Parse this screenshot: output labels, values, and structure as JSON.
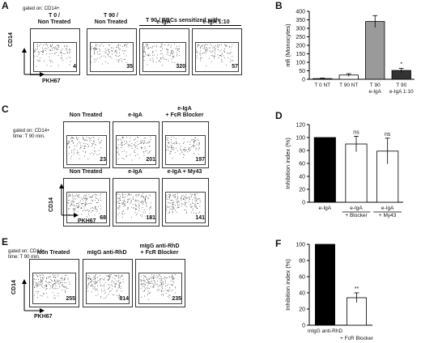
{
  "panelA": {
    "letter": "A",
    "gated": "gated on: CD14+",
    "group_header": "T 90 / RBCs sensitized with:",
    "ylabel": "CD14",
    "xlabel": "PKH67",
    "plots": [
      {
        "title": "T 0 /\nNon Treated",
        "value": "4"
      },
      {
        "title": "T 90 /\nNon Treated",
        "value": "35"
      },
      {
        "title": "e-IgA",
        "value": "320"
      },
      {
        "title": "e-IgA 1:10",
        "value": "57"
      }
    ]
  },
  "panelC": {
    "letter": "C",
    "gated": "gated on: CD14+\ntime: T 90 min.",
    "ylabel": "CD14",
    "xlabel": "PKH67",
    "row1": [
      {
        "title": "Non Treated",
        "value": "23"
      },
      {
        "title": "e-IgA",
        "value": "201"
      },
      {
        "title": "e-IgA\n+ FcR Blocker",
        "value": "197"
      }
    ],
    "row2": [
      {
        "title": "Non Treated",
        "value": "68"
      },
      {
        "title": "e-IgA",
        "value": "181"
      },
      {
        "title": "e-IgA + My43",
        "value": "141"
      }
    ]
  },
  "panelE": {
    "letter": "E",
    "gated": "gated on: CD14+\ntime: T 90 min.",
    "ylabel": "CD14",
    "xlabel": "PKH67",
    "plots": [
      {
        "title": "Non Treated",
        "value": "255"
      },
      {
        "title": "mIgG anti-RhD",
        "value": "814"
      },
      {
        "title": "mIgG anti-RhD\n+ FcR Blocker",
        "value": "235"
      }
    ]
  },
  "chart_data": [
    {
      "panel": "B",
      "type": "bar",
      "ylabel": "mfi (Monocytes)",
      "ylim": [
        0,
        400
      ],
      "yticks": [
        0,
        50,
        100,
        150,
        200,
        250,
        300,
        350,
        400
      ],
      "categories": [
        "T 0 NT",
        "T 90 NT",
        "T 90\ne-IgA",
        "T 90\ne-IgA 1:10"
      ],
      "values": [
        4,
        25,
        340,
        52
      ],
      "errors": [
        3,
        8,
        35,
        12
      ],
      "colors": [
        "#ffffff",
        "#ffffff",
        "#9a9a9a",
        "#333333"
      ],
      "annotations": [
        "",
        "",
        "",
        "*"
      ]
    },
    {
      "panel": "D",
      "type": "bar",
      "ylabel": "Inhibition index (%)",
      "ylim": [
        0,
        120
      ],
      "yticks": [
        0,
        20,
        40,
        60,
        80,
        100,
        120
      ],
      "categories": [
        "e-IgA",
        "e-IgA",
        "e-IgA"
      ],
      "sublabels": [
        "",
        "+ Blocker",
        "+ My43"
      ],
      "values": [
        100,
        90,
        79
      ],
      "errors": [
        0,
        12,
        20
      ],
      "colors": [
        "#000000",
        "#ffffff",
        "#ffffff"
      ],
      "annotations": [
        "",
        "ns",
        "ns"
      ]
    },
    {
      "panel": "F",
      "type": "bar",
      "ylabel": "Inhibition index (%)",
      "ylim": [
        0,
        100
      ],
      "yticks": [
        0,
        20,
        40,
        60,
        80,
        100
      ],
      "categories": [
        "mIgG anti-RhD",
        ""
      ],
      "sublabels": [
        "",
        "+ FcR Blocker"
      ],
      "values": [
        100,
        34
      ],
      "errors": [
        0,
        6
      ],
      "colors": [
        "#000000",
        "#ffffff"
      ],
      "annotations": [
        "",
        "**"
      ]
    }
  ]
}
